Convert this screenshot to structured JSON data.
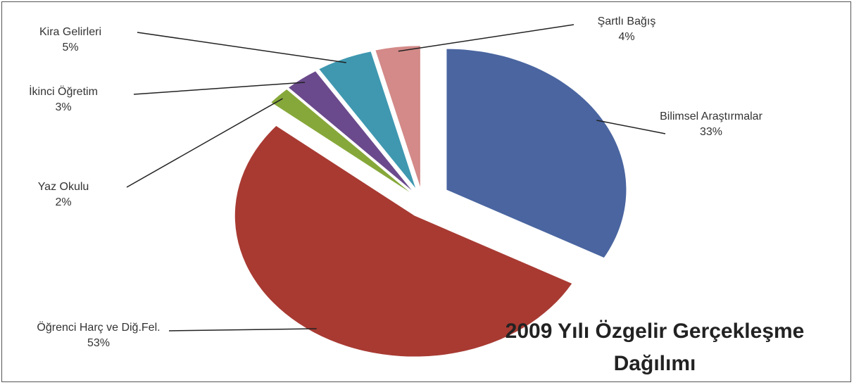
{
  "chart_data": {
    "type": "pie",
    "title": "2009 Yılı Özgelir Gerçekleşme Dağılımı",
    "categories": [
      "Bilimsel Araştırmalar",
      "Öğrenci Harç ve Diğ.Fel.",
      "Yaz Okulu",
      "İkinci Öğretim",
      "Kira Gelirleri",
      "Şartlı Bağış"
    ],
    "values": [
      33,
      53,
      2,
      3,
      5,
      4
    ],
    "value_labels": [
      "33%",
      "53%",
      "2%",
      "3%",
      "5%",
      "4%"
    ],
    "colors": [
      "#4a65a0",
      "#a83a32",
      "#86a83a",
      "#6a4a8c",
      "#3f98b0",
      "#d38a88"
    ]
  }
}
